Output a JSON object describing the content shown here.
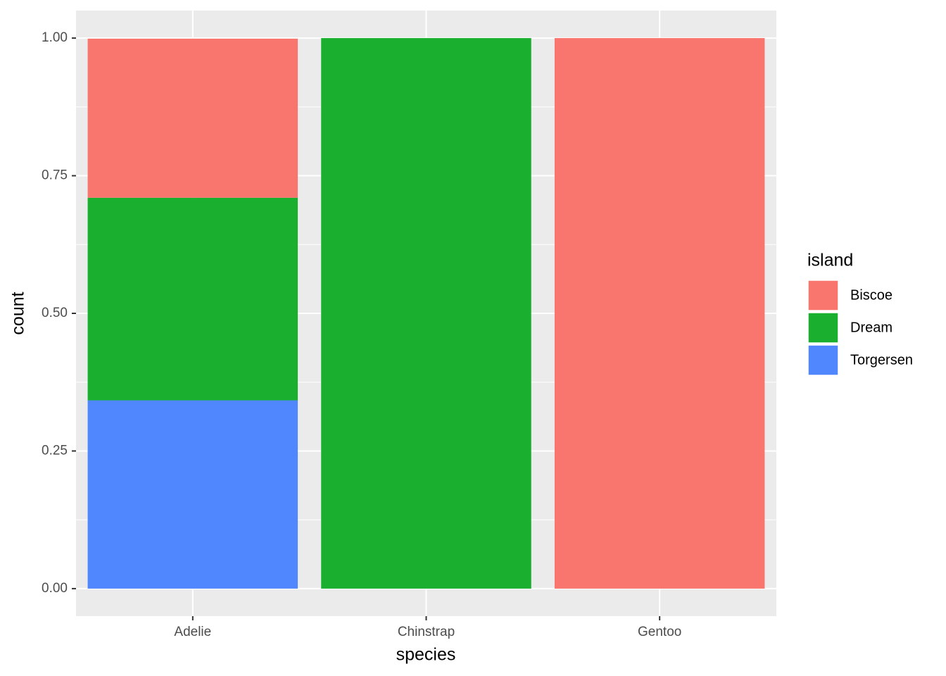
{
  "chart_data": {
    "type": "bar",
    "stacked": true,
    "x_label": "species",
    "y_label": "count",
    "categories": [
      "Adelie",
      "Chinstrap",
      "Gentoo"
    ],
    "legend_title": "island",
    "series": [
      {
        "name": "Biscoe",
        "color": "#f8766d",
        "values": [
          0.289,
          0,
          1
        ]
      },
      {
        "name": "Dream",
        "color": "#1aaf2f",
        "values": [
          0.368,
          1,
          0
        ]
      },
      {
        "name": "Torgersen",
        "color": "#5087ff",
        "values": [
          0.342,
          0,
          0
        ]
      }
    ],
    "ylim": [
      -0.05,
      1.05
    ],
    "yticks": [
      {
        "value": 0,
        "label": "0.00"
      },
      {
        "value": 0.25,
        "label": "0.25"
      },
      {
        "value": 0.5,
        "label": "0.50"
      },
      {
        "value": 0.75,
        "label": "0.75"
      },
      {
        "value": 1,
        "label": "1.00"
      }
    ],
    "grid": true,
    "legend_position": "right"
  }
}
